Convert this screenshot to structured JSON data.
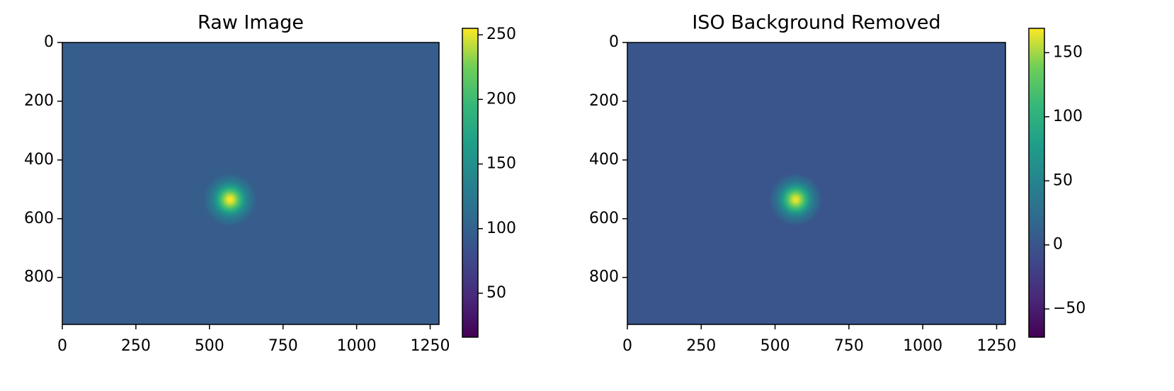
{
  "chart_data": [
    {
      "type": "image",
      "title": "Raw Image",
      "colormap": "viridis",
      "xlim": [
        0,
        1280
      ],
      "xticks": [
        0,
        250,
        500,
        750,
        1000,
        1250
      ],
      "ylim": [
        960,
        0
      ],
      "yticks": [
        0,
        200,
        400,
        600,
        800
      ],
      "spot": {
        "x": 570,
        "y": 535,
        "sigma": 35,
        "value": 255,
        "background": 95
      },
      "clim": [
        16,
        255
      ],
      "cticks": [
        50,
        100,
        150,
        200,
        250
      ]
    },
    {
      "type": "image",
      "title": "ISO Background Removed",
      "colormap": "viridis",
      "xlim": [
        0,
        1280
      ],
      "xticks": [
        0,
        250,
        500,
        750,
        1000,
        1250
      ],
      "ylim": [
        960,
        0
      ],
      "yticks": [
        0,
        200,
        400,
        600,
        800
      ],
      "spot": {
        "x": 570,
        "y": 535,
        "sigma": 35,
        "value": 166,
        "background": 0
      },
      "clim": [
        -72,
        169
      ],
      "cticks": [
        {
          "value": -50,
          "label": "−50"
        },
        0,
        50,
        100,
        150
      ]
    }
  ]
}
